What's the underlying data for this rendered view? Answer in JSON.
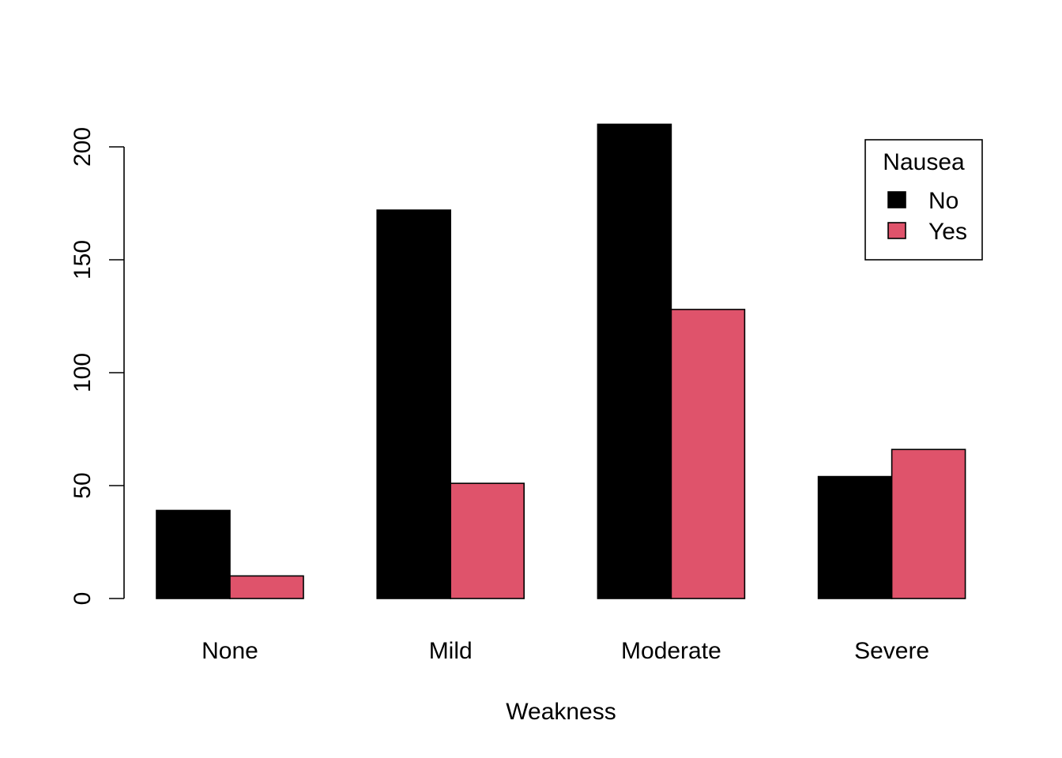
{
  "chart_data": {
    "type": "bar",
    "title": "",
    "xlabel": "Weakness",
    "ylabel": "",
    "categories": [
      "None",
      "Mild",
      "Moderate",
      "Severe"
    ],
    "series": [
      {
        "name": "No",
        "color": "#000000",
        "values": [
          39,
          172,
          210,
          54
        ]
      },
      {
        "name": "Yes",
        "color": "#DF536B",
        "values": [
          10,
          51,
          128,
          66
        ]
      }
    ],
    "ylim": [
      0,
      210
    ],
    "y_ticks": [
      0,
      50,
      100,
      150,
      200
    ],
    "legend": {
      "title": "Nausea",
      "position": "top-right"
    },
    "grid": false
  }
}
